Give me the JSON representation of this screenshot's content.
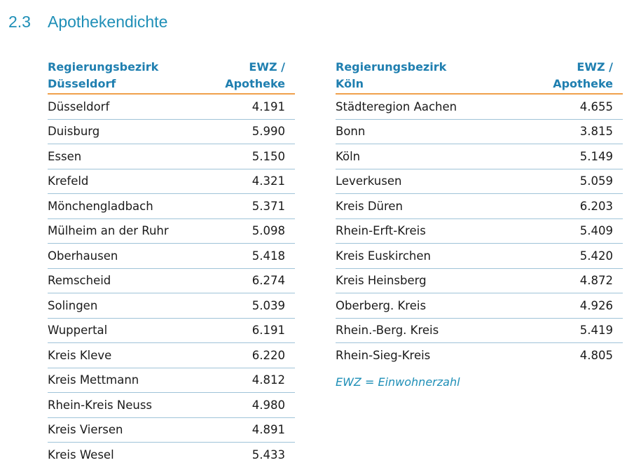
{
  "heading": {
    "number": "2.3",
    "title": "Apothekendichte"
  },
  "left_table": {
    "header_region_line1": "Regierungsbezirk",
    "header_region_line2": "Düsseldorf",
    "header_ewz_line1": "EWZ /",
    "header_ewz_line2": "Apotheke",
    "rows": [
      {
        "name": "Düsseldorf",
        "value": "4.191"
      },
      {
        "name": "Duisburg",
        "value": "5.990"
      },
      {
        "name": "Essen",
        "value": "5.150"
      },
      {
        "name": "Krefeld",
        "value": "4.321"
      },
      {
        "name": "Mönchengladbach",
        "value": "5.371"
      },
      {
        "name": "Mülheim an der Ruhr",
        "value": "5.098"
      },
      {
        "name": "Oberhausen",
        "value": "5.418"
      },
      {
        "name": "Remscheid",
        "value": "6.274"
      },
      {
        "name": "Solingen",
        "value": "5.039"
      },
      {
        "name": "Wuppertal",
        "value": "6.191"
      },
      {
        "name": "Kreis Kleve",
        "value": "6.220"
      },
      {
        "name": "Kreis Mettmann",
        "value": "4.812"
      },
      {
        "name": "Rhein-Kreis Neuss",
        "value": "4.980"
      },
      {
        "name": "Kreis Viersen",
        "value": "4.891"
      },
      {
        "name": "Kreis Wesel",
        "value": "5.433"
      }
    ]
  },
  "right_table": {
    "header_region_line1": "Regierungsbezirk",
    "header_region_line2": "Köln",
    "header_ewz_line1": "EWZ /",
    "header_ewz_line2": "Apotheke",
    "rows": [
      {
        "name": "Städteregion Aachen",
        "value": "4.655"
      },
      {
        "name": "Bonn",
        "value": "3.815"
      },
      {
        "name": "Köln",
        "value": "5.149"
      },
      {
        "name": "Leverkusen",
        "value": "5.059"
      },
      {
        "name": "Kreis Düren",
        "value": "6.203"
      },
      {
        "name": "Rhein-Erft-Kreis",
        "value": "5.409"
      },
      {
        "name": "Kreis Euskirchen",
        "value": "5.420"
      },
      {
        "name": "Kreis Heinsberg",
        "value": "4.872"
      },
      {
        "name": "Oberberg. Kreis",
        "value": "4.926"
      },
      {
        "name": "Rhein.-Berg. Kreis",
        "value": "5.419"
      },
      {
        "name": "Rhein-Sieg-Kreis",
        "value": "4.805"
      }
    ]
  },
  "footnote": "EWZ = Einwohnerzahl"
}
